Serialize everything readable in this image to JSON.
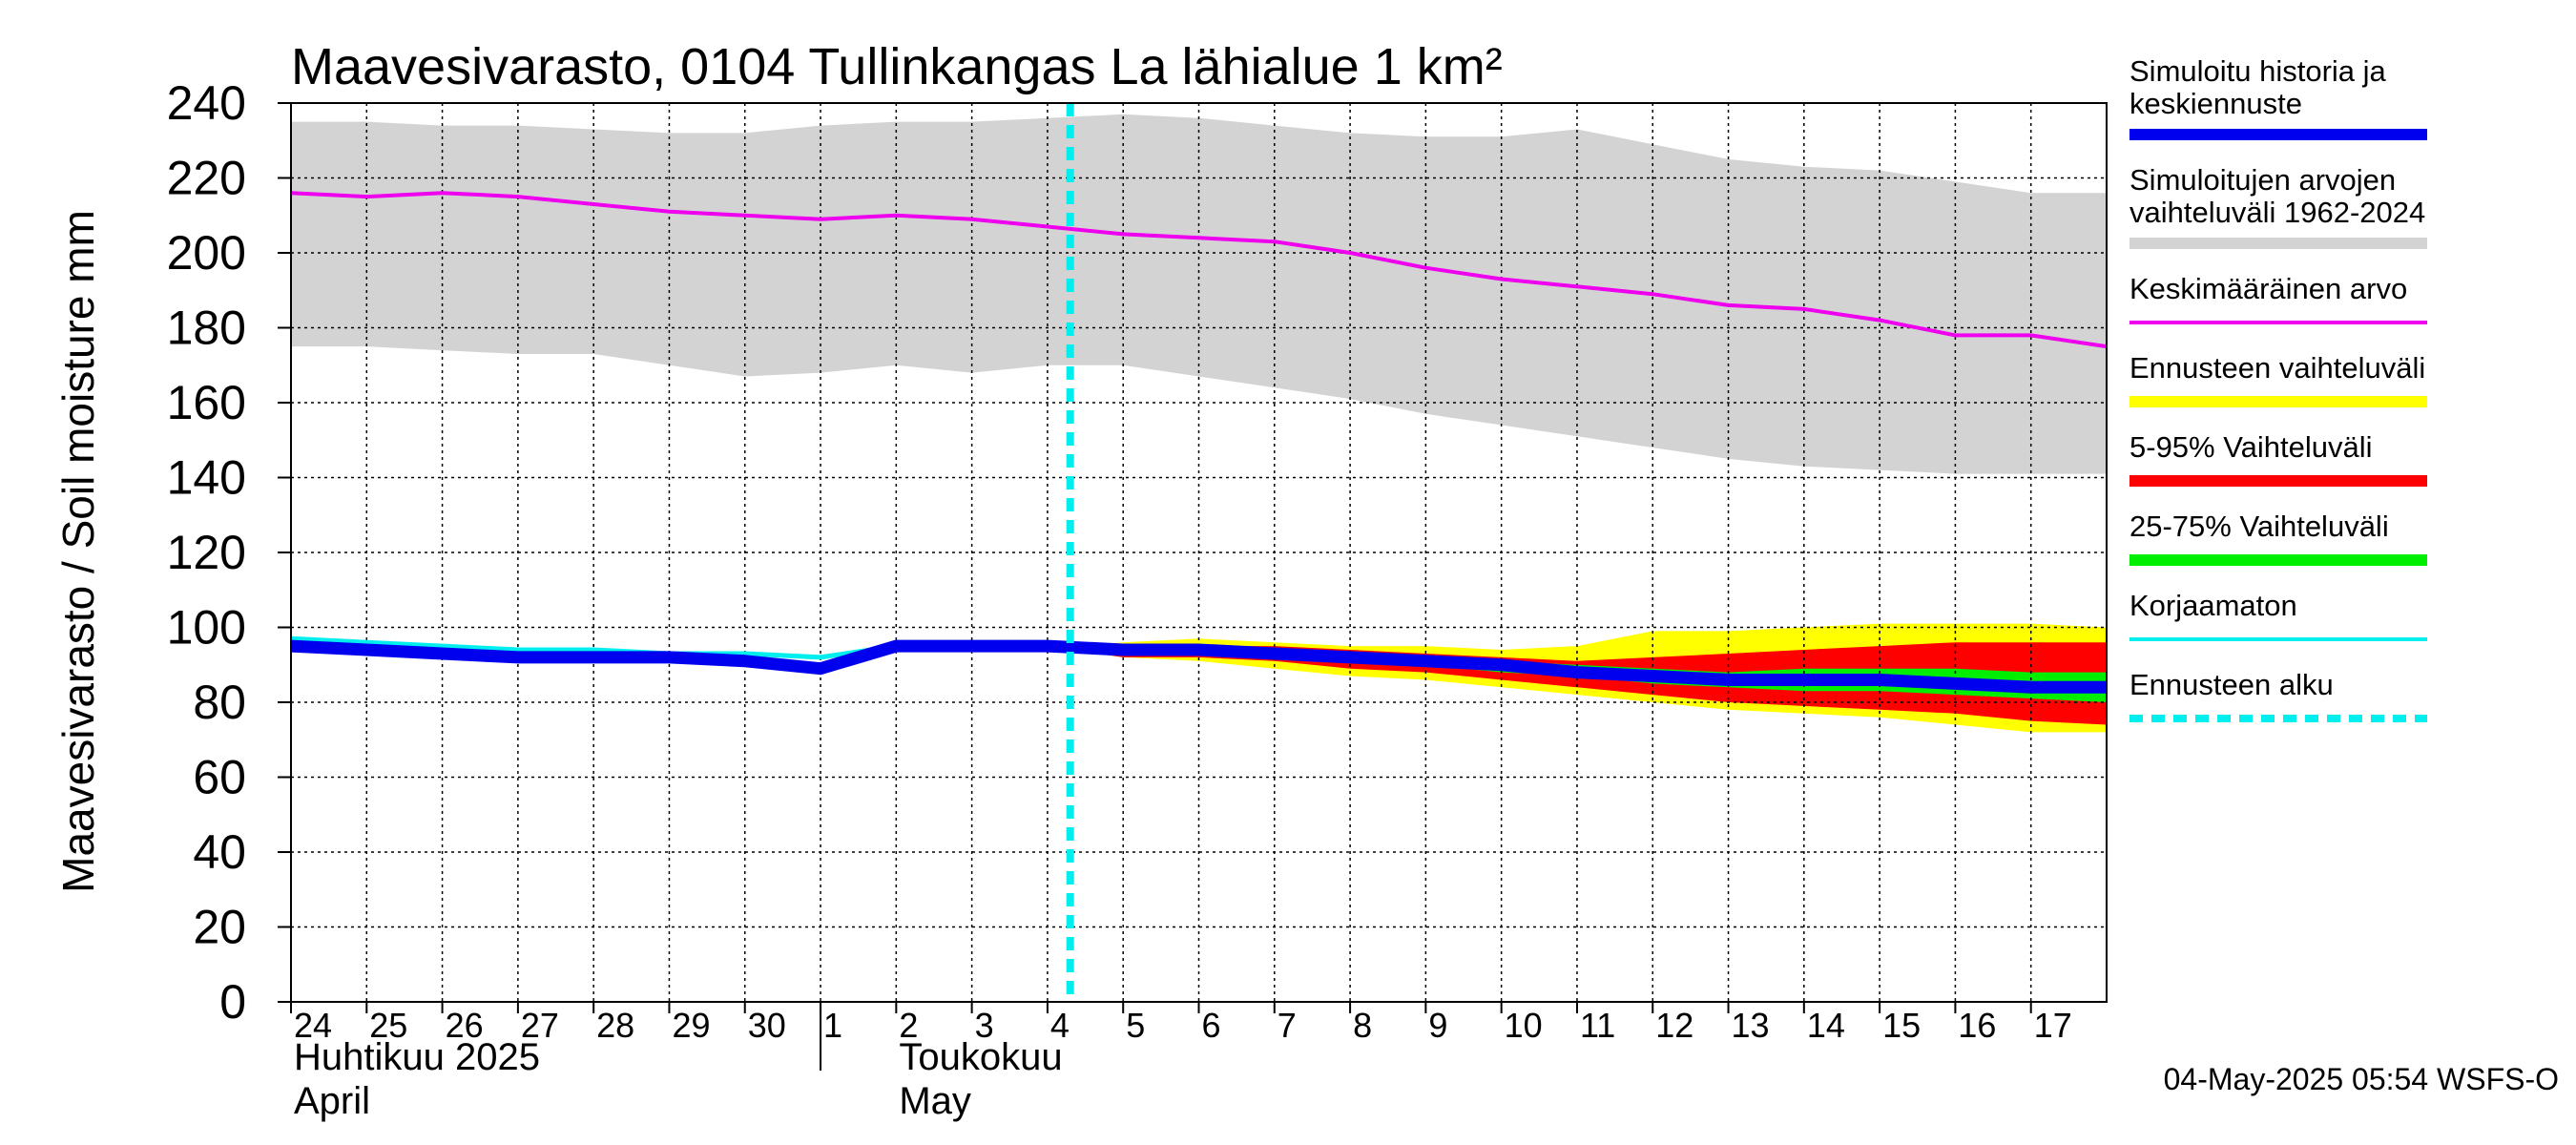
{
  "chart_data": {
    "type": "area",
    "title": "Maavesivarasto, 0104 Tullinkangas La lähialue 1 km²",
    "ylabel": "Maavesivarasto / Soil moisture   mm",
    "ylim": [
      0,
      240
    ],
    "yticks": [
      0,
      20,
      40,
      60,
      80,
      100,
      120,
      140,
      160,
      180,
      200,
      220,
      240
    ],
    "xlim": [
      0,
      24
    ],
    "grid": true,
    "x_tick_labels": [
      "24",
      "25",
      "26",
      "27",
      "28",
      "29",
      "30",
      "1",
      "2",
      "3",
      "4",
      "5",
      "6",
      "7",
      "8",
      "9",
      "10",
      "11",
      "12",
      "13",
      "14",
      "15",
      "16",
      "17"
    ],
    "months": [
      {
        "fi": "Huhtikuu  2025",
        "en": "April",
        "at": 0
      },
      {
        "fi": "Toukokuu",
        "en": "May",
        "at": 8
      }
    ],
    "month_divider_at": 7,
    "forecast_start": 10.3,
    "series": [
      {
        "name": "Simuloitujen arvojen vaihteluväli 1962-2024",
        "kind": "band",
        "color": "#d3d3d3",
        "x": [
          0,
          1,
          2,
          3,
          4,
          5,
          6,
          7,
          8,
          9,
          10,
          11,
          12,
          13,
          14,
          15,
          16,
          17,
          18,
          19,
          20,
          21,
          22,
          23,
          24
        ],
        "low": [
          175,
          175,
          174,
          173,
          173,
          170,
          167,
          168,
          170,
          168,
          170,
          170,
          167,
          164,
          161,
          157,
          154,
          151,
          148,
          145,
          143,
          142,
          141,
          141,
          141
        ],
        "high": [
          235,
          235,
          234,
          234,
          233,
          232,
          232,
          234,
          235,
          235,
          236,
          237,
          236,
          234,
          232,
          231,
          231,
          233,
          229,
          225,
          223,
          222,
          219,
          216,
          216
        ]
      },
      {
        "name": "Ennusteen vaihteluväli",
        "kind": "band",
        "color": "#ffff00",
        "x": [
          10.3,
          11,
          12,
          13,
          14,
          15,
          16,
          17,
          18,
          19,
          20,
          21,
          22,
          23,
          24
        ],
        "low": [
          94,
          92,
          91,
          89,
          87,
          86,
          84,
          82,
          80,
          78,
          77,
          76,
          74,
          72,
          72
        ],
        "high": [
          95,
          96,
          97,
          96,
          95,
          95,
          94,
          95,
          99,
          99,
          100,
          101,
          101,
          101,
          100
        ]
      },
      {
        "name": "5-95% Vaihteluväli",
        "kind": "band",
        "color": "#ff0000",
        "x": [
          10.3,
          11,
          12,
          13,
          14,
          15,
          16,
          17,
          18,
          19,
          20,
          21,
          22,
          23,
          24
        ],
        "low": [
          94,
          92,
          92,
          91,
          89,
          88,
          86,
          84,
          82,
          80,
          79,
          78,
          77,
          75,
          74
        ],
        "high": [
          95,
          95,
          95,
          95,
          94,
          93,
          92,
          91,
          92,
          93,
          94,
          95,
          96,
          96,
          96
        ]
      },
      {
        "name": "25-75% Vaihteluväli",
        "kind": "band",
        "color": "#00ee00",
        "x": [
          10.3,
          11,
          12,
          13,
          14,
          15,
          16,
          17,
          18,
          19,
          20,
          21,
          22,
          23,
          24
        ],
        "low": [
          94,
          93,
          93,
          92,
          91,
          90,
          88,
          87,
          85,
          84,
          83,
          83,
          82,
          81,
          80
        ],
        "high": [
          95,
          95,
          95,
          94,
          93,
          92,
          91,
          90,
          89,
          88,
          89,
          89,
          89,
          88,
          88
        ]
      },
      {
        "name": "Keskimääräinen arvo",
        "kind": "line",
        "color": "#ee00ee",
        "x": [
          0,
          1,
          2,
          3,
          4,
          5,
          6,
          7,
          8,
          9,
          10,
          11,
          12,
          13,
          14,
          15,
          16,
          17,
          18,
          19,
          20,
          21,
          22,
          23,
          24
        ],
        "y": [
          216,
          215,
          216,
          215,
          213,
          211,
          210,
          209,
          210,
          209,
          207,
          205,
          204,
          203,
          200,
          196,
          193,
          191,
          189,
          186,
          185,
          182,
          178,
          178,
          175
        ]
      },
      {
        "name": "Korjaamaton",
        "kind": "line",
        "color": "#00eeee",
        "x": [
          0,
          1,
          2,
          3,
          4,
          5,
          6,
          7,
          8,
          9,
          10,
          10.3
        ],
        "y": [
          97,
          96,
          95,
          94,
          94,
          93,
          93,
          92,
          95,
          95,
          95,
          95
        ]
      },
      {
        "name": "Simuloitu historia ja keskiennuste",
        "kind": "line",
        "color": "#0000ee",
        "x": [
          0,
          1,
          2,
          3,
          4,
          5,
          6,
          7,
          8,
          9,
          10,
          11,
          12,
          13,
          14,
          15,
          16,
          17,
          18,
          19,
          20,
          21,
          22,
          23,
          24
        ],
        "y": [
          95,
          94,
          93,
          92,
          92,
          92,
          91,
          89,
          95,
          95,
          95,
          94,
          94,
          93,
          92,
          91,
          90,
          88,
          87,
          86,
          86,
          86,
          85,
          84,
          84
        ]
      }
    ],
    "legend": {
      "placement": "right",
      "entries": [
        {
          "line1": "Simuloitu historia ja",
          "line2": "keskiennuste",
          "color": "#0000ee",
          "style": "solid"
        },
        {
          "line1": "Simuloitujen arvojen",
          "line2": "vaihteluväli 1962-2024",
          "color": "#d3d3d3",
          "style": "solid"
        },
        {
          "line1": "Keskimääräinen arvo",
          "line2": "",
          "color": "#ee00ee",
          "style": "thin"
        },
        {
          "line1": "Ennusteen vaihteluväli",
          "line2": "",
          "color": "#ffff00",
          "style": "solid"
        },
        {
          "line1": "5-95% Vaihteluväli",
          "line2": "",
          "color": "#ff0000",
          "style": "solid"
        },
        {
          "line1": "25-75% Vaihteluväli",
          "line2": "",
          "color": "#00ee00",
          "style": "solid"
        },
        {
          "line1": "Korjaamaton",
          "line2": "",
          "color": "#00eeee",
          "style": "thin"
        },
        {
          "line1": "Ennusteen alku",
          "line2": "",
          "color": "#00eeee",
          "style": "dashed"
        }
      ]
    },
    "footer": "04-May-2025 05:54 WSFS-O"
  }
}
